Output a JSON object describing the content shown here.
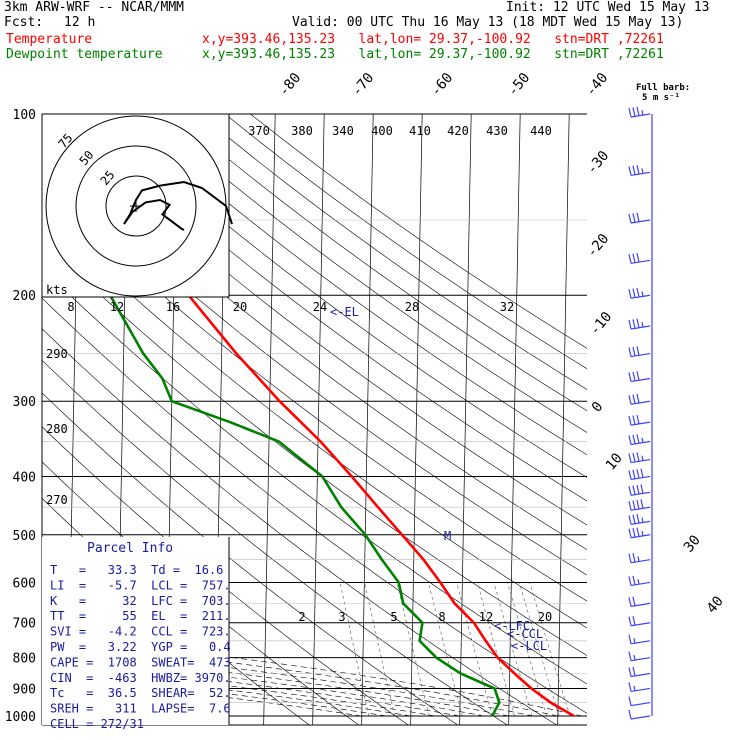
{
  "header": {
    "model": "3km ARW-WRF -- NCAR/MMM",
    "init": "Init: 12 UTC Wed 15 May 13",
    "fcst_label": "Fcst:",
    "fcst_value": "12 h",
    "valid": "Valid: 00 UTC Thu 16 May 13 (18 MDT Wed 15 May 13)",
    "temp_label": "Temperature",
    "temp_info": "x,y=393.46,135.23   lat,lon= 29.37,-100.92   stn=DRT ,72261",
    "dew_label": "Dewpoint temperature",
    "dew_info": "x,y=393.46,135.23   lat,lon= 29.37,-100.92   stn=DRT ,72261"
  },
  "colors": {
    "temperature": "#ff0000",
    "dewpoint": "#008000",
    "header_red": "#ff0000",
    "header_green": "#008000",
    "parcel_text": "#1a1aa0",
    "frame": "#000000"
  },
  "barb_key": {
    "line1": "Full barb:",
    "line2": "5 m s⁻¹"
  },
  "hodograph": {
    "ring_labels": [
      "75",
      "50",
      "25"
    ],
    "unit": "kts"
  },
  "parcel_info": {
    "title": "Parcel Info",
    "rows": [
      "T   =   33.3  Td =  16.6",
      "LI  =   -5.7  LCL =  757.",
      "K   =     32  LFC =  703.",
      "TT  =     55  EL  =  211.",
      "SVI =   -4.2  CCL =  723.",
      "PW  =   3.22  YGP =   0.4",
      "CAPE =  1708  SWEAT=  473",
      "CIN  =  -463  HWBZ= 3970.",
      "Tc   =  36.5  SHEAR=  52.",
      "SREH =   311  LAPSE=  7.6",
      "CELL = 272/31"
    ]
  },
  "parcel_markers": {
    "el": "<-EL",
    "lfc": "<-LFC",
    "ccl": "<-CCL",
    "lcl": "<-LCL",
    "m": "M"
  },
  "chart_data": {
    "type": "line",
    "y_axis": "pressure (hPa)",
    "pressure_labels": [
      "100",
      "200",
      "300",
      "400",
      "500",
      "600",
      "700",
      "800",
      "900",
      "1000"
    ],
    "isotherm_labels": [
      "-80",
      "-70",
      "-60",
      "-50",
      "-40",
      "-30",
      "-20",
      "-10",
      "0",
      "10",
      "30",
      "40"
    ],
    "theta_labels": [
      "370",
      "380",
      "340",
      "400",
      "410",
      "420",
      "430",
      "440"
    ],
    "theta_left_labels": [
      "290",
      "280",
      "270"
    ],
    "mixing_ratio_upper": [
      "8",
      "12",
      "16",
      "20",
      "24",
      "28",
      "32"
    ],
    "mixing_ratio_lower": [
      "2",
      "3",
      "5",
      "8",
      "12",
      "20"
    ],
    "series": [
      {
        "name": "Temperature",
        "color": "#ff0000",
        "profile": [
          [
            1000,
            33.3
          ],
          [
            950,
            28.5
          ],
          [
            900,
            24.5
          ],
          [
            850,
            21
          ],
          [
            800,
            17.5
          ],
          [
            750,
            15
          ],
          [
            700,
            12.5
          ],
          [
            650,
            8.5
          ],
          [
            600,
            5.5
          ],
          [
            550,
            2
          ],
          [
            500,
            -2.5
          ],
          [
            450,
            -7.5
          ],
          [
            400,
            -13
          ],
          [
            350,
            -19.5
          ],
          [
            300,
            -28
          ],
          [
            250,
            -37
          ],
          [
            200,
            -47
          ],
          [
            175,
            -53
          ],
          [
            150,
            -58
          ],
          [
            125,
            -63
          ],
          [
            100,
            -68
          ]
        ]
      },
      {
        "name": "Dewpoint temperature",
        "color": "#008000",
        "profile": [
          [
            1000,
            16.6
          ],
          [
            950,
            18
          ],
          [
            900,
            17
          ],
          [
            850,
            10
          ],
          [
            800,
            5
          ],
          [
            750,
            1.5
          ],
          [
            700,
            2
          ],
          [
            650,
            -2
          ],
          [
            600,
            -3
          ],
          [
            550,
            -6.5
          ],
          [
            500,
            -10
          ],
          [
            450,
            -15
          ],
          [
            400,
            -19
          ],
          [
            350,
            -28
          ],
          [
            325,
            -38
          ],
          [
            300,
            -50
          ],
          [
            275,
            -52
          ],
          [
            250,
            -56
          ],
          [
            200,
            -63
          ],
          [
            175,
            -66
          ],
          [
            150,
            -70
          ],
          [
            125,
            -74
          ],
          [
            100,
            -78
          ]
        ]
      }
    ],
    "hodograph_trace": [
      [
        80,
        10
      ],
      [
        75,
        25
      ],
      [
        55,
        40
      ],
      [
        40,
        45
      ],
      [
        20,
        42
      ],
      [
        5,
        38
      ],
      [
        0,
        30
      ],
      [
        -5,
        18
      ],
      [
        -10,
        10
      ],
      [
        -3,
        20
      ],
      [
        8,
        28
      ],
      [
        20,
        30
      ],
      [
        28,
        26
      ],
      [
        22,
        18
      ],
      [
        30,
        12
      ],
      [
        38,
        6
      ],
      [
        40,
        5
      ]
    ],
    "wind_barbs": [
      {
        "p": 100,
        "knots": 35
      },
      {
        "p": 125,
        "knots": 35
      },
      {
        "p": 150,
        "knots": 30
      },
      {
        "p": 175,
        "knots": 30
      },
      {
        "p": 200,
        "knots": 35
      },
      {
        "p": 225,
        "knots": 35
      },
      {
        "p": 250,
        "knots": 30
      },
      {
        "p": 275,
        "knots": 30
      },
      {
        "p": 300,
        "knots": 30
      },
      {
        "p": 325,
        "knots": 30
      },
      {
        "p": 350,
        "knots": 35
      },
      {
        "p": 375,
        "knots": 35
      },
      {
        "p": 400,
        "knots": 40
      },
      {
        "p": 425,
        "knots": 40
      },
      {
        "p": 450,
        "knots": 40
      },
      {
        "p": 475,
        "knots": 35
      },
      {
        "p": 500,
        "knots": 35
      },
      {
        "p": 550,
        "knots": 25
      },
      {
        "p": 600,
        "knots": 25
      },
      {
        "p": 650,
        "knots": 20
      },
      {
        "p": 700,
        "knots": 20
      },
      {
        "p": 750,
        "knots": 15
      },
      {
        "p": 800,
        "knots": 15
      },
      {
        "p": 850,
        "knots": 20
      },
      {
        "p": 900,
        "knots": 15
      },
      {
        "p": 950,
        "knots": 10
      },
      {
        "p": 1000,
        "knots": 10
      }
    ]
  }
}
